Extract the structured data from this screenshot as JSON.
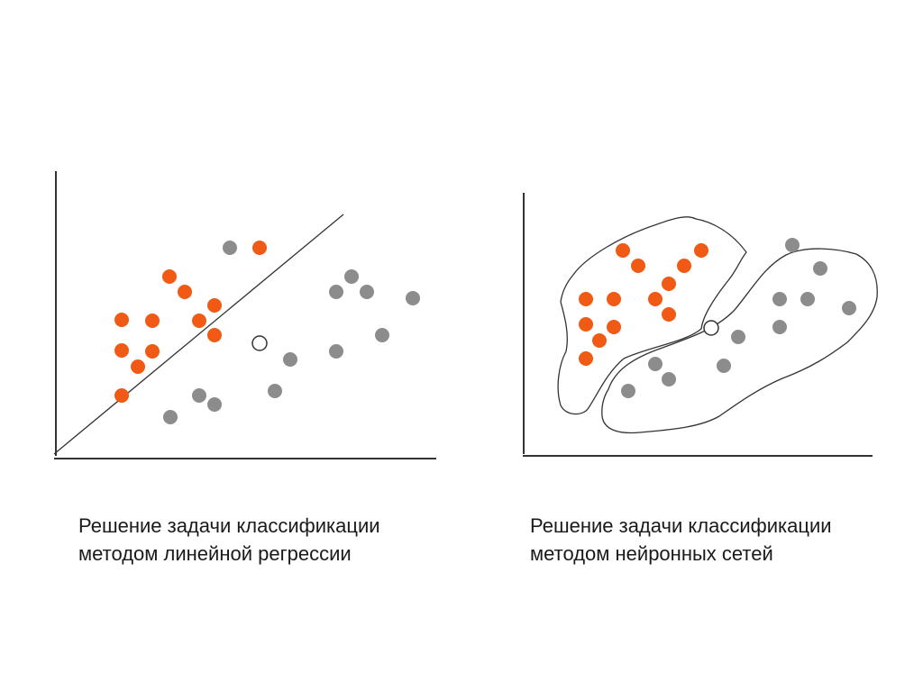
{
  "colors": {
    "class_a": "#f05a14",
    "class_b": "#8c8c8c",
    "unknown": "#ffffff",
    "line": "#333333"
  },
  "panels": [
    {
      "id": "linear",
      "caption": [
        "Решение задачи классификации",
        "методом линейной регрессии"
      ],
      "points": [
        {
          "cls": "a",
          "x": 126,
          "y": 202
        },
        {
          "cls": "a",
          "x": 143,
          "y": 185
        },
        {
          "cls": "a",
          "x": 73,
          "y": 154
        },
        {
          "cls": "a",
          "x": 107,
          "y": 153
        },
        {
          "cls": "a",
          "x": 159,
          "y": 153
        },
        {
          "cls": "a",
          "x": 176,
          "y": 170
        },
        {
          "cls": "a",
          "x": 176,
          "y": 137
        },
        {
          "cls": "a",
          "x": 107,
          "y": 119
        },
        {
          "cls": "a",
          "x": 73,
          "y": 120
        },
        {
          "cls": "a",
          "x": 91,
          "y": 102
        },
        {
          "cls": "a",
          "x": 73,
          "y": 70
        },
        {
          "cls": "a",
          "x": 226,
          "y": 234
        },
        {
          "cls": "b",
          "x": 193,
          "y": 234
        },
        {
          "cls": "b",
          "x": 328,
          "y": 202
        },
        {
          "cls": "b",
          "x": 311,
          "y": 185
        },
        {
          "cls": "b",
          "x": 345,
          "y": 185
        },
        {
          "cls": "b",
          "x": 396,
          "y": 178
        },
        {
          "cls": "b",
          "x": 362,
          "y": 137
        },
        {
          "cls": "b",
          "x": 311,
          "y": 119
        },
        {
          "cls": "b",
          "x": 260,
          "y": 110
        },
        {
          "cls": "b",
          "x": 243,
          "y": 75
        },
        {
          "cls": "b",
          "x": 159,
          "y": 70
        },
        {
          "cls": "b",
          "x": 176,
          "y": 60
        },
        {
          "cls": "b",
          "x": 127,
          "y": 46
        },
        {
          "cls": "u",
          "x": 226,
          "y": 128
        }
      ]
    },
    {
      "id": "neural",
      "caption": [
        "Решение задачи классификации",
        "методом нейронных сетей"
      ],
      "points": [
        {
          "cls": "a",
          "x": 110,
          "y": 228
        },
        {
          "cls": "a",
          "x": 127,
          "y": 211
        },
        {
          "cls": "a",
          "x": 178,
          "y": 211
        },
        {
          "cls": "a",
          "x": 197,
          "y": 228
        },
        {
          "cls": "a",
          "x": 69,
          "y": 174
        },
        {
          "cls": "a",
          "x": 100,
          "y": 174
        },
        {
          "cls": "a",
          "x": 146,
          "y": 174
        },
        {
          "cls": "a",
          "x": 161,
          "y": 191
        },
        {
          "cls": "a",
          "x": 161,
          "y": 157
        },
        {
          "cls": "a",
          "x": 100,
          "y": 143
        },
        {
          "cls": "a",
          "x": 69,
          "y": 146
        },
        {
          "cls": "a",
          "x": 84,
          "y": 128
        },
        {
          "cls": "a",
          "x": 69,
          "y": 108
        },
        {
          "cls": "b",
          "x": 298,
          "y": 234
        },
        {
          "cls": "b",
          "x": 329,
          "y": 208
        },
        {
          "cls": "b",
          "x": 284,
          "y": 174
        },
        {
          "cls": "b",
          "x": 315,
          "y": 174
        },
        {
          "cls": "b",
          "x": 361,
          "y": 164
        },
        {
          "cls": "b",
          "x": 284,
          "y": 143
        },
        {
          "cls": "b",
          "x": 238,
          "y": 132
        },
        {
          "cls": "b",
          "x": 222,
          "y": 100
        },
        {
          "cls": "b",
          "x": 146,
          "y": 102
        },
        {
          "cls": "b",
          "x": 161,
          "y": 85
        },
        {
          "cls": "b",
          "x": 116,
          "y": 72
        },
        {
          "cls": "u",
          "x": 208,
          "y": 142
        }
      ]
    }
  ]
}
